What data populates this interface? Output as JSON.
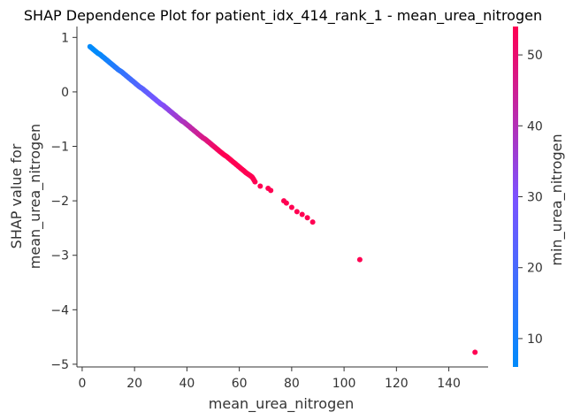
{
  "chart_data": {
    "type": "scatter",
    "title": "SHAP Dependence Plot for patient_idx_414_rank_1 - mean_urea_nitrogen",
    "xlabel": "mean_urea_nitrogen",
    "ylabel_line1": "SHAP value for",
    "ylabel_line2": "mean_urea_nitrogen",
    "xlim": [
      -2,
      155
    ],
    "ylim": [
      -5.05,
      1.2
    ],
    "xticks": [
      0,
      20,
      40,
      60,
      80,
      100,
      120,
      140
    ],
    "xtick_labels": [
      "0",
      "20",
      "40",
      "60",
      "80",
      "100",
      "120",
      "140"
    ],
    "yticks": [
      1,
      0,
      -1,
      -2,
      -3,
      -4,
      -5
    ],
    "ytick_labels": [
      "1",
      "0",
      "−1",
      "−2",
      "−3",
      "−4",
      "−5"
    ],
    "colorbar": {
      "label": "min_urea_nitrogen",
      "range": [
        6,
        54
      ],
      "ticks": [
        10,
        20,
        30,
        40,
        50
      ],
      "tick_labels": [
        "10",
        "20",
        "30",
        "40",
        "50"
      ],
      "color_low": "#008bfb",
      "color_mid": "#7c52ff",
      "color_high": "#ff0052"
    },
    "grid": false,
    "points": {
      "x": [
        3,
        4,
        5,
        6,
        7,
        8,
        9,
        10,
        11,
        12,
        13,
        14,
        15,
        16,
        17,
        18,
        19,
        20,
        21,
        22,
        23,
        24,
        25,
        26,
        27,
        28,
        29,
        30,
        31,
        32,
        33,
        34,
        35,
        36,
        37,
        38,
        39,
        40,
        41,
        42,
        43,
        44,
        45,
        46,
        47,
        48,
        49,
        50,
        51,
        52,
        53,
        54,
        55,
        56,
        57,
        58,
        59,
        60,
        61,
        62,
        63,
        64,
        65,
        66,
        68,
        71,
        72,
        77,
        78,
        80,
        82,
        84,
        86,
        88,
        106,
        150
      ],
      "y": [
        0.83,
        0.79,
        0.75,
        0.71,
        0.68,
        0.64,
        0.6,
        0.56,
        0.52,
        0.48,
        0.44,
        0.4,
        0.37,
        0.33,
        0.29,
        0.25,
        0.21,
        0.17,
        0.13,
        0.09,
        0.06,
        0.02,
        -0.02,
        -0.06,
        -0.1,
        -0.14,
        -0.18,
        -0.22,
        -0.25,
        -0.29,
        -0.33,
        -0.37,
        -0.41,
        -0.45,
        -0.49,
        -0.53,
        -0.56,
        -0.6,
        -0.64,
        -0.68,
        -0.72,
        -0.76,
        -0.8,
        -0.84,
        -0.87,
        -0.91,
        -0.95,
        -0.99,
        -1.03,
        -1.07,
        -1.11,
        -1.15,
        -1.18,
        -1.22,
        -1.26,
        -1.3,
        -1.34,
        -1.38,
        -1.42,
        -1.46,
        -1.5,
        -1.53,
        -1.57,
        -1.65,
        -1.73,
        -1.77,
        -1.81,
        -2.0,
        -2.04,
        -2.12,
        -2.2,
        -2.25,
        -2.31,
        -2.39,
        -3.08,
        -4.78
      ],
      "color_value": [
        3,
        4,
        5,
        6,
        7,
        8,
        9,
        10,
        11,
        12,
        13,
        14,
        15,
        16,
        17,
        18,
        19,
        20,
        21,
        22,
        23,
        24,
        25,
        26,
        27,
        28,
        29,
        30,
        31,
        32,
        33,
        34,
        35,
        36,
        37,
        38,
        39,
        40,
        41,
        42,
        43,
        44,
        45,
        46,
        47,
        48,
        49,
        50,
        51,
        52,
        53,
        54,
        55,
        56,
        57,
        58,
        59,
        60,
        61,
        62,
        63,
        64,
        65,
        66,
        54,
        54,
        54,
        54,
        54,
        54,
        54,
        54,
        54,
        54,
        54,
        54
      ]
    }
  }
}
